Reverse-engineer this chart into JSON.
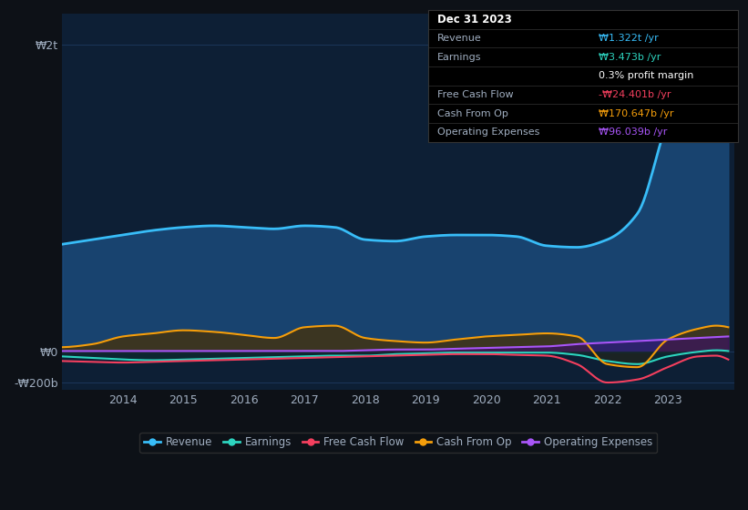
{
  "bg_color": "#0d1117",
  "plot_bg_color": "#0d1f35",
  "grid_color": "#1e3a5f",
  "text_color": "#a0aec0",
  "title_color": "#ffffff",
  "ylabel_w2t": "₩2t",
  "ylabel_w0": "₩0",
  "ylabel_wneg200b": "-₩200b",
  "series_colors": {
    "Revenue": "#38bdf8",
    "Earnings": "#2dd4bf",
    "Free Cash Flow": "#f43f5e",
    "Cash From Op": "#f59e0b",
    "Operating Expenses": "#a855f7"
  },
  "legend_labels": [
    "Revenue",
    "Earnings",
    "Free Cash Flow",
    "Cash From Op",
    "Operating Expenses"
  ],
  "tooltip_title": "Dec 31 2023",
  "tooltip_bg": "#000000",
  "tooltip_border": "#333333",
  "ylim": [
    -250,
    2200
  ],
  "fill_revenue_color": "#1a4a7a",
  "fill_cashfromop_color": "#2d2000",
  "fill_opex_color": "#3b0d6b"
}
